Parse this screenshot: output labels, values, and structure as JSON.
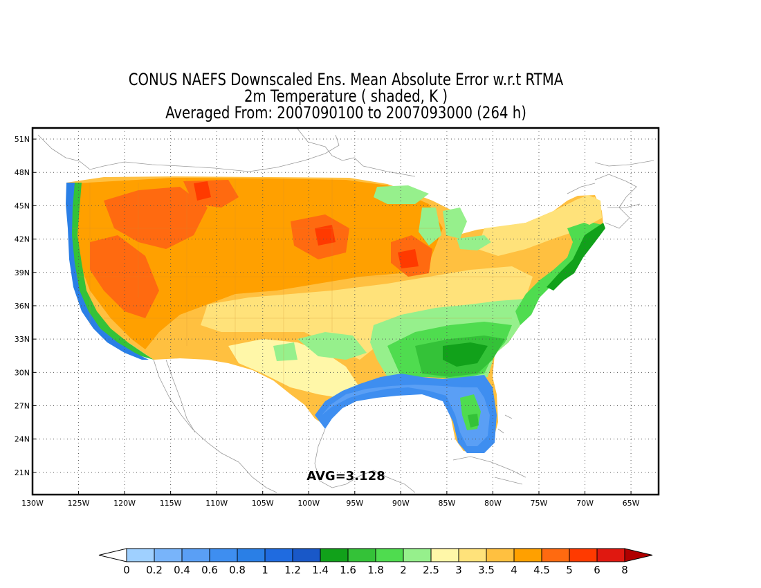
{
  "titles": {
    "line1": "CONUS NAEFS Downscaled Ens. Mean Absolute Error w.r.t RTMA",
    "line2": "2m Temperature ( shaded, K )",
    "line3": "Averaged From: 2007090100 to 2007093000 (264 h)"
  },
  "map": {
    "lon_range": [
      -130,
      -62
    ],
    "lat_range": [
      19,
      52
    ],
    "lon_ticks": [
      "130W",
      "125W",
      "120W",
      "115W",
      "110W",
      "105W",
      "100W",
      "95W",
      "90W",
      "85W",
      "80W",
      "75W",
      "70W",
      "65W"
    ],
    "lat_ticks": [
      "51N",
      "48N",
      "45N",
      "42N",
      "39N",
      "36N",
      "33N",
      "30N",
      "27N",
      "24N",
      "21N"
    ],
    "grid": "dotted",
    "avg_label": "AVG=3.128"
  },
  "colorbar": {
    "labels": [
      "0",
      "0.2",
      "0.4",
      "0.6",
      "0.8",
      "1",
      "1.2",
      "1.4",
      "1.6",
      "1.8",
      "2",
      "2.5",
      "3",
      "3.5",
      "4",
      "4.5",
      "5",
      "6",
      "8"
    ],
    "colors": [
      "#9fd0ff",
      "#78b4fa",
      "#5a9ff5",
      "#3e8ef0",
      "#2a7fe6",
      "#1f6be0",
      "#1958c8",
      "#11a11a",
      "#34c238",
      "#4fdc4f",
      "#96f08c",
      "#fff7a8",
      "#ffe27a",
      "#ffc040",
      "#ffa000",
      "#ff6a10",
      "#ff3a00",
      "#e01810"
    ],
    "under_color": "#ffffff",
    "over_color": "#b00000"
  }
}
